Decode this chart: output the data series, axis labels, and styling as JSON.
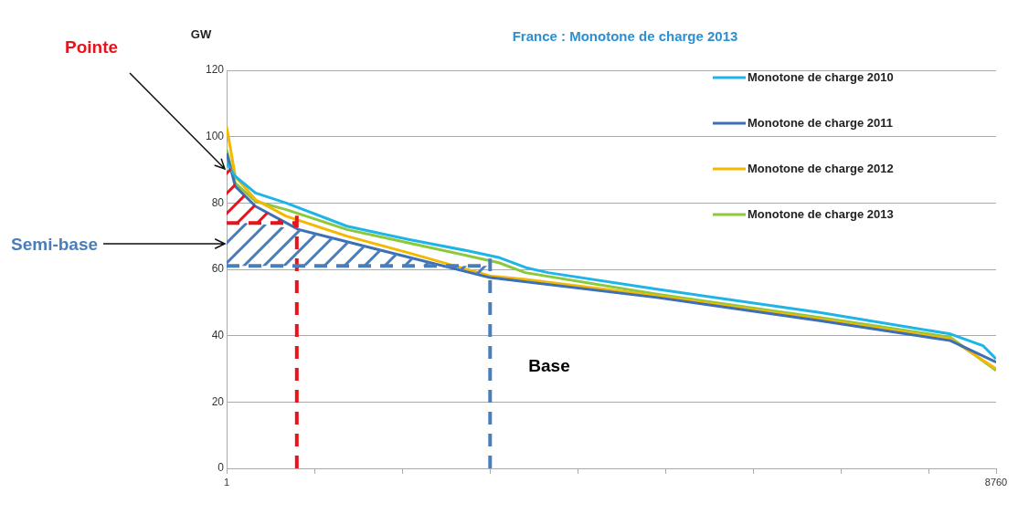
{
  "chart_data": {
    "type": "line",
    "title": "France : Monotone de charge 2013",
    "ylabel": "GW",
    "xlim": [
      1,
      8760
    ],
    "xticks": [
      1,
      {
        "value": 1000,
        "label": null
      },
      {
        "value": 2000,
        "label": null
      },
      {
        "value": 3000,
        "label": null
      },
      {
        "value": 4000,
        "label": null
      },
      {
        "value": 5000,
        "label": null
      },
      {
        "value": 6000,
        "label": null
      },
      {
        "value": 7000,
        "label": null
      },
      {
        "value": 8000,
        "label": null
      },
      8760
    ],
    "ylim": [
      0,
      120
    ],
    "yticks": [
      0,
      20,
      40,
      60,
      80,
      100,
      120
    ],
    "grid": "y",
    "legend": "top right",
    "marker": "none",
    "line_style": "solid",
    "series": [
      {
        "name": "Monotone de charge 2010",
        "color": "#1fb4e8",
        "x": [
          1,
          100,
          330,
          680,
          1370,
          2070,
          2760,
          3110,
          3410,
          3660,
          4900,
          6750,
          8240,
          8610,
          8760
        ],
        "values": [
          92,
          88,
          83,
          80,
          73,
          69,
          65.5,
          63.5,
          60.5,
          59,
          54,
          47,
          40.5,
          37,
          33
        ]
      },
      {
        "name": "Monotone de charge 2011",
        "color": "#3c6fb6",
        "x": [
          1,
          100,
          330,
          820,
          1720,
          3000,
          4900,
          6750,
          8240,
          8760
        ],
        "values": [
          95,
          85,
          79,
          72,
          66,
          57.5,
          51.5,
          44.5,
          38.5,
          32
        ]
      },
      {
        "name": "Monotone de charge 2012",
        "color": "#f5b800",
        "x": [
          1,
          100,
          330,
          680,
          1370,
          2070,
          3000,
          3400,
          4900,
          6750,
          8240,
          8760
        ],
        "values": [
          103,
          88,
          81,
          76,
          70,
          65,
          58,
          57,
          52,
          45,
          39,
          30
        ]
      },
      {
        "name": "Monotone de charge 2013",
        "color": "#8cc83c",
        "x": [
          1,
          100,
          330,
          680,
          1370,
          2070,
          2760,
          3100,
          3400,
          4900,
          6750,
          8240,
          8760
        ],
        "values": [
          96,
          86,
          80.5,
          78,
          72,
          68,
          64,
          62,
          59,
          52.5,
          45.5,
          39.5,
          29.5
        ]
      }
    ],
    "ref_lines": [
      {
        "axis": "x",
        "value": 800,
        "color": "#e8141b",
        "line_style": "dashed"
      },
      {
        "axis": "x",
        "value": 3000,
        "color": "#4a7ebb",
        "line_style": "dashed"
      },
      {
        "axis": "y",
        "value": 74,
        "color": "#e8141b",
        "line_style": "dashed"
      },
      {
        "axis": "y",
        "value": 61,
        "color": "#4a7ebb",
        "line_style": "dashed"
      }
    ],
    "annotations": [
      "Pointe",
      "Semi-base",
      "Base"
    ]
  }
}
